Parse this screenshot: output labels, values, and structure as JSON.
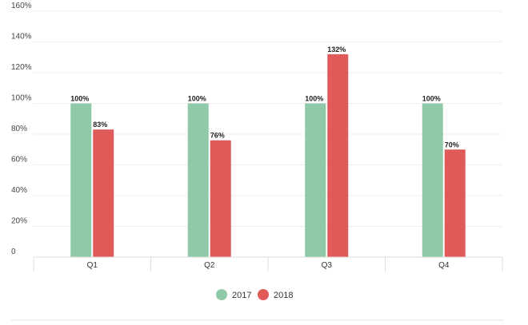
{
  "chart_data": {
    "type": "bar",
    "title": "",
    "xlabel": "",
    "ylabel": "",
    "categories": [
      "Q1",
      "Q2",
      "Q3",
      "Q4"
    ],
    "series": [
      {
        "name": "2017",
        "color": "#8fc9a8",
        "values": [
          100,
          100,
          100,
          100
        ],
        "labels": [
          "100%",
          "100%",
          "100%",
          "100%"
        ]
      },
      {
        "name": "2018",
        "color": "#e05a5a",
        "values": [
          83,
          76,
          132,
          70
        ],
        "labels": [
          "83%",
          "76%",
          "132%",
          "70%"
        ]
      }
    ],
    "ylim": [
      0,
      160
    ],
    "yticks": [
      {
        "value": 0,
        "label": "0"
      },
      {
        "value": 20,
        "label": "20%"
      },
      {
        "value": 40,
        "label": "40%"
      },
      {
        "value": 60,
        "label": "60%"
      },
      {
        "value": 80,
        "label": "80%"
      },
      {
        "value": 100,
        "label": "100%"
      },
      {
        "value": 120,
        "label": "120%"
      },
      {
        "value": 140,
        "label": "140%"
      },
      {
        "value": 160,
        "label": "160%"
      }
    ],
    "grid": true,
    "legend_position": "bottom-center"
  }
}
